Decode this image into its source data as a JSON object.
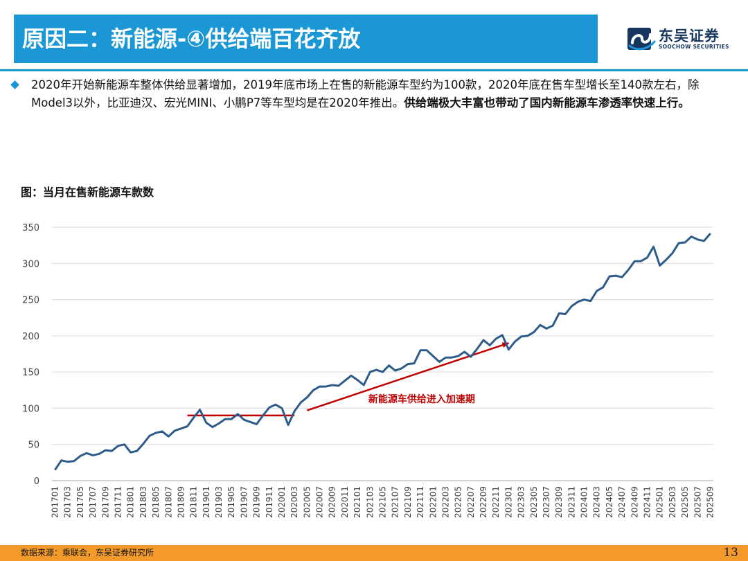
{
  "header": {
    "title": "原因二：新能源-④供给端百花齐放",
    "logo_name": "东吴证券",
    "logo_en": "SOOCHOW SECURITIES"
  },
  "bullet": {
    "text": "2020年开始新能源车整体供给显著增加，2019年底市场上在售的新能源车型约为100款，2020年底在售车型增长至140款左右，除Model3以外，比亚迪汉、宏光MINI、小鹏P7等车型均是在2020年推出。",
    "bold_text": "供给端极大丰富也带动了国内新能源车渗透率快速上行。"
  },
  "figure_title": "图：当月在售新能源车款数",
  "chart_data": {
    "type": "line",
    "title": "",
    "xlabel": "",
    "ylabel": "",
    "ylim": [
      0,
      350
    ],
    "yticks": [
      0,
      50,
      100,
      150,
      200,
      250,
      300,
      350
    ],
    "grid": "horizontal",
    "tick_labels": [
      "201701",
      "201703",
      "201705",
      "201707",
      "201709",
      "201711",
      "201801",
      "201803",
      "201805",
      "201807",
      "201809",
      "201811",
      "201901",
      "201903",
      "201905",
      "201907",
      "201909",
      "201911",
      "202001",
      "202003",
      "202005",
      "202007",
      "202009",
      "202011",
      "202101",
      "202103",
      "202105",
      "202107",
      "202109",
      "202111",
      "202201",
      "202203",
      "202205",
      "202207",
      "202209",
      "202211",
      "202301",
      "202303",
      "202305",
      "202307",
      "202309",
      "202311",
      "202401",
      "202403",
      "202405",
      "202407",
      "202409",
      "202411",
      "202501",
      "202503",
      "202505",
      "202507",
      "202509"
    ],
    "x": [
      "201701",
      "201702",
      "201703",
      "201704",
      "201705",
      "201706",
      "201707",
      "201708",
      "201709",
      "201710",
      "201711",
      "201712",
      "201801",
      "201802",
      "201803",
      "201804",
      "201805",
      "201806",
      "201807",
      "201808",
      "201809",
      "201810",
      "201811",
      "201812",
      "201901",
      "201902",
      "201903",
      "201904",
      "201905",
      "201906",
      "201907",
      "201908",
      "201909",
      "201910",
      "201911",
      "201912",
      "202001",
      "202002",
      "202003",
      "202004",
      "202005",
      "202006",
      "202007",
      "202008",
      "202009",
      "202010",
      "202011",
      "202012",
      "202101",
      "202102",
      "202103",
      "202104",
      "202105",
      "202106",
      "202107",
      "202108",
      "202109",
      "202110",
      "202111",
      "202112",
      "202201",
      "202202",
      "202203",
      "202204",
      "202205",
      "202206",
      "202207",
      "202208",
      "202209",
      "202210",
      "202211",
      "202212",
      "202301",
      "202302",
      "202303",
      "202304",
      "202305",
      "202306",
      "202307",
      "202308",
      "202309",
      "202310",
      "202311",
      "202312",
      "202401",
      "202402",
      "202403",
      "202404",
      "202405",
      "202406",
      "202407",
      "202408",
      "202409",
      "202410",
      "202411",
      "202412",
      "202501",
      "202502",
      "202503",
      "202504",
      "202505",
      "202506",
      "202507",
      "202508",
      "202509"
    ],
    "series": [
      {
        "color": "#2e5c8a",
        "values": [
          15,
          28,
          26,
          27,
          34,
          38,
          35,
          37,
          42,
          41,
          48,
          50,
          39,
          41,
          51,
          62,
          66,
          68,
          61,
          69,
          72,
          75,
          87,
          98,
          80,
          74,
          79,
          85,
          85,
          92,
          84,
          81,
          78,
          90,
          101,
          105,
          100,
          77,
          96,
          108,
          115,
          125,
          130,
          130,
          132,
          131,
          138,
          145,
          139,
          132,
          150,
          153,
          150,
          159,
          152,
          155,
          161,
          162,
          180,
          180,
          172,
          164,
          170,
          170,
          172,
          178,
          171,
          182,
          194,
          187,
          196,
          201,
          181,
          192,
          199,
          200,
          205,
          215,
          210,
          214,
          231,
          230,
          241,
          247,
          250,
          248,
          262,
          267,
          282,
          283,
          281,
          291,
          303,
          303,
          308,
          323,
          297,
          305,
          314,
          328,
          329,
          337,
          333,
          331,
          341
        ]
      }
    ],
    "annotations": [
      {
        "type": "hline",
        "x_start": "201810",
        "x_end": "202003",
        "y": 90,
        "color": "#c00000"
      },
      {
        "type": "arrow",
        "x_start": "202005",
        "y_start": 97,
        "x_end": "202301",
        "y_end": 190,
        "color": "#c00000",
        "label": "新能源车供给进入加速期"
      }
    ]
  },
  "footer": {
    "source": "数据来源：乘联会，东吴证券研究所",
    "page": "13"
  }
}
